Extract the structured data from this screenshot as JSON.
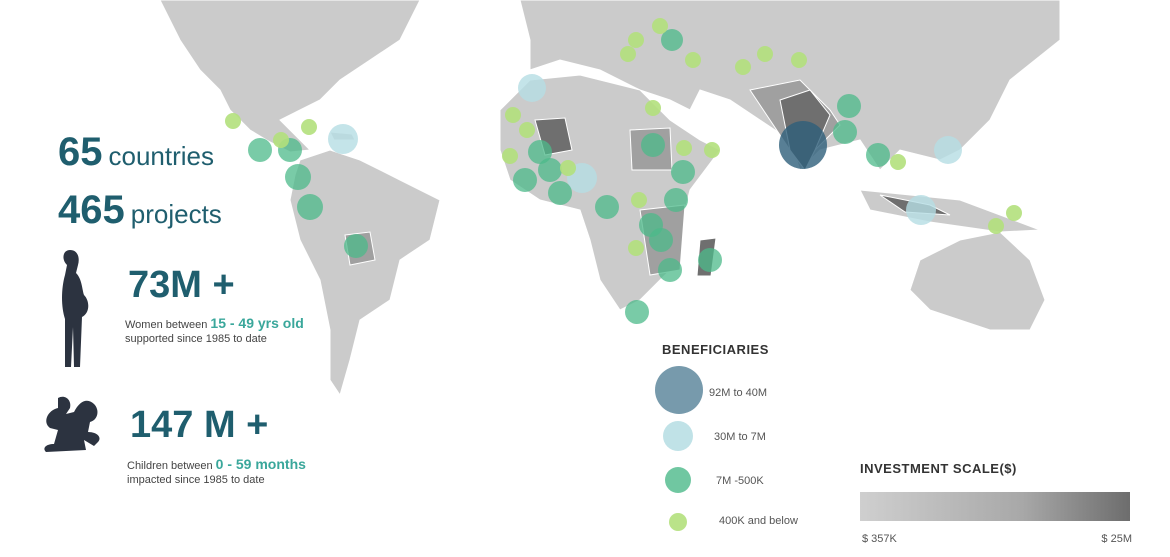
{
  "stats": {
    "countries": {
      "number": "65",
      "label": "countries"
    },
    "projects": {
      "number": "465",
      "label": "projects"
    },
    "women": {
      "figure": "73M +",
      "text_before": "Women between ",
      "highlight": "15 - 49 yrs old",
      "text_after": "supported  since 1985 to date"
    },
    "children": {
      "figure": "147 M +",
      "text_before": "Children between ",
      "highlight": "0 - 59 months",
      "text_after": "impacted since 1985 to date"
    }
  },
  "beneficiaries_legend": {
    "title": "BENEFICIARIES",
    "items": [
      "92M to 40M",
      "30M to 7M",
      "7M -500K",
      "400K and below"
    ]
  },
  "investment_scale": {
    "title": "INVESTMENT SCALE($)",
    "min_label": "$ 357K",
    "max_label": "$ 25M"
  }
}
